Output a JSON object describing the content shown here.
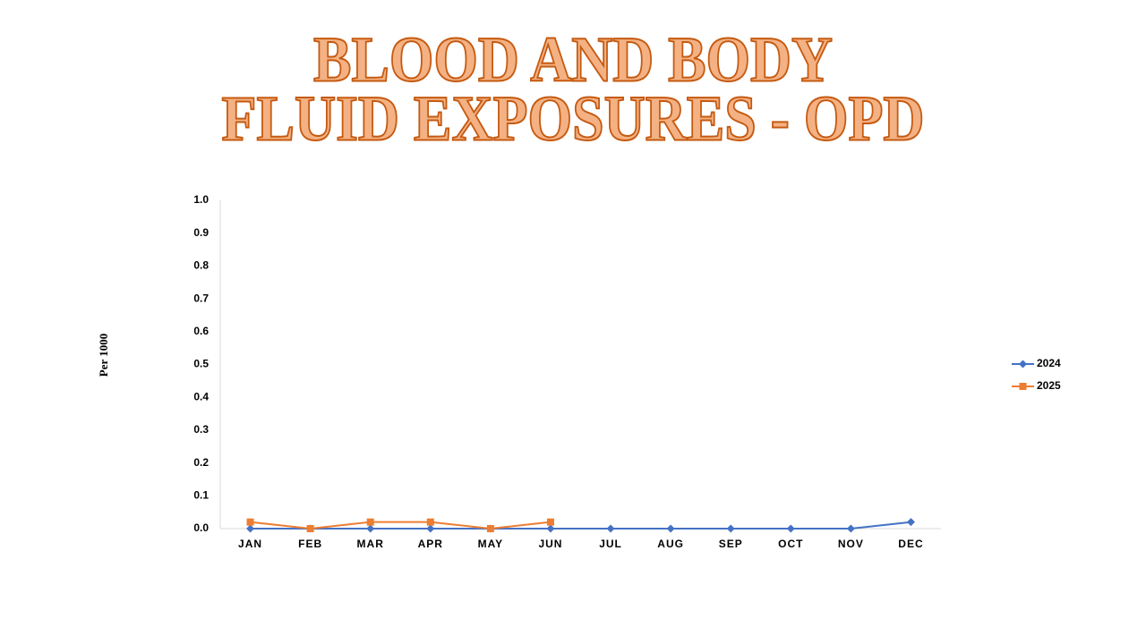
{
  "chart_data": {
    "type": "line",
    "title": [
      "BLOOD AND BODY",
      "FLUID EXPOSURES - OPD"
    ],
    "y_label": "Per 1000",
    "categories": [
      "JAN",
      "FEB",
      "MAR",
      "APR",
      "MAY",
      "JUN",
      "JUL",
      "AUG",
      "SEP",
      "OCT",
      "NOV",
      "DEC"
    ],
    "series": [
      {
        "name": "2024",
        "color": "#4472c4",
        "marker": "diamond",
        "values": [
          0,
          0,
          0,
          0,
          0,
          0,
          0,
          0,
          0,
          0,
          0,
          0.02
        ]
      },
      {
        "name": "2025",
        "color": "#ed7d31",
        "marker": "square",
        "values": [
          0.02,
          0,
          0.02,
          0.02,
          0,
          0.02,
          null,
          null,
          null,
          null,
          null,
          null
        ]
      }
    ],
    "ylim": [
      0,
      1
    ],
    "yticks": [
      {
        "value": 0,
        "label": "0.0"
      },
      0.1,
      0.2,
      0.3,
      0.4,
      0.5,
      0.6,
      0.7,
      0.8,
      0.9,
      {
        "value": 1,
        "label": "1.0"
      }
    ],
    "grid": false,
    "legend": "right"
  }
}
